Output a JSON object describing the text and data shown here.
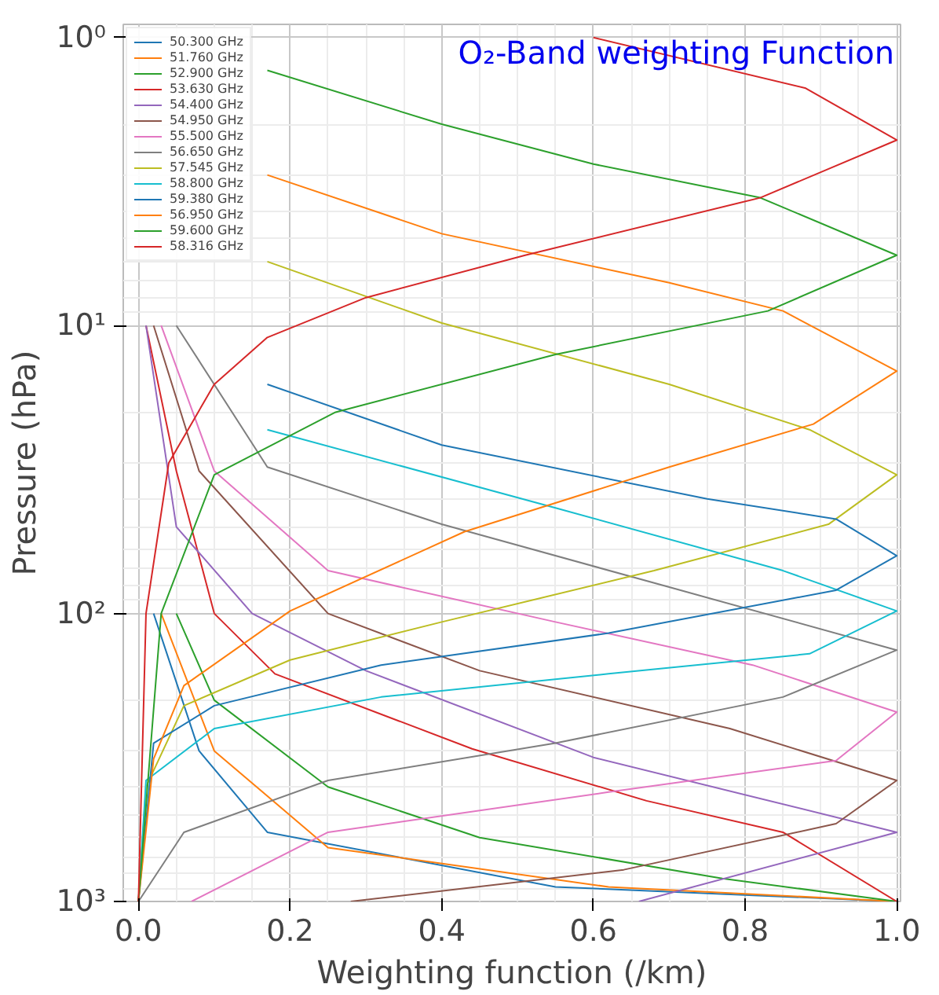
{
  "chart_data": {
    "type": "line",
    "xlabel": "Weighting function (/km)",
    "ylabel": "Pressure (hPa)",
    "annotations": [
      "O₂-Band weighting Function"
    ],
    "xlim": [
      -0.02,
      1.005
    ],
    "ylim": [
      1000,
      0.9
    ],
    "log": "y",
    "grid": true,
    "legend": "top left",
    "marker": "none",
    "line_style": "solid",
    "xticks": [
      {
        "value": 0,
        "label": "0.0"
      },
      {
        "value": 0.2,
        "label": "0.2"
      },
      {
        "value": 0.4,
        "label": "0.4"
      },
      {
        "value": 0.6,
        "label": "0.6"
      },
      {
        "value": 0.8,
        "label": "0.8"
      },
      {
        "value": 1,
        "label": "1.0"
      }
    ],
    "yticks": [
      {
        "value": 1,
        "label": "10⁰"
      },
      {
        "value": 10,
        "label": "10¹"
      },
      {
        "value": 100,
        "label": "10²"
      },
      {
        "value": 1000,
        "label": "10³"
      }
    ],
    "series": [
      {
        "name": "50.300 GHz",
        "color": "#1f77b4",
        "x": [
          0.02,
          0.08,
          0.17,
          0.55,
          1.0
        ],
        "values": [
          100,
          300,
          575,
          890,
          1000
        ]
      },
      {
        "name": "51.760 GHz",
        "color": "#ff7f0e",
        "x": [
          0.03,
          0.1,
          0.25,
          0.62,
          1.0
        ],
        "values": [
          100,
          300,
          650,
          890,
          1000
        ]
      },
      {
        "name": "52.900 GHz",
        "color": "#2ca02c",
        "x": [
          0.05,
          0.1,
          0.25,
          0.45,
          0.77,
          1.0
        ],
        "values": [
          100,
          200,
          400,
          600,
          832,
          1000
        ]
      },
      {
        "name": "53.630 GHz",
        "color": "#d62728",
        "x": [
          0.01,
          0.05,
          0.1,
          0.18,
          0.44,
          0.67,
          0.85,
          1.0
        ],
        "values": [
          10,
          32,
          100,
          162,
          295,
          447,
          575,
          1000
        ]
      },
      {
        "name": "54.400 GHz",
        "color": "#9467bd",
        "x": [
          0.01,
          0.05,
          0.15,
          0.3,
          0.6,
          1.0,
          0.66
        ],
        "values": [
          10,
          50,
          100,
          158,
          316,
          575,
          1000
        ]
      },
      {
        "name": "54.950 GHz",
        "color": "#8c564b",
        "x": [
          0.02,
          0.08,
          0.25,
          0.45,
          0.78,
          1.0,
          0.92,
          0.64,
          0.28
        ],
        "values": [
          10,
          32,
          100,
          158,
          251,
          380,
          537,
          776,
          1000
        ]
      },
      {
        "name": "55.500 GHz",
        "color": "#e377c2",
        "x": [
          0.03,
          0.1,
          0.25,
          0.55,
          0.81,
          1.0,
          0.92,
          0.62,
          0.25,
          0.07
        ],
        "values": [
          10,
          32,
          71,
          107,
          151,
          220,
          324,
          417,
          575,
          1000
        ]
      },
      {
        "name": "56.650 GHz",
        "color": "#7f7f7f",
        "x": [
          0.05,
          0.17,
          0.4,
          0.7,
          1.0,
          0.85,
          0.55,
          0.25,
          0.06,
          0
        ],
        "values": [
          10,
          31,
          49,
          81,
          134,
          195,
          282,
          380,
          575,
          1000
        ]
      },
      {
        "name": "57.545 GHz",
        "color": "#bcbd22",
        "x": [
          0.17,
          0.4,
          0.7,
          0.885,
          1.0,
          0.91,
          0.68,
          0.4,
          0.2,
          0.06,
          0.01,
          0
        ],
        "values": [
          6,
          9.8,
          16,
          23,
          33,
          49,
          71,
          107,
          145,
          209,
          400,
          1000
        ]
      },
      {
        "name": "58.800 GHz",
        "color": "#17becf",
        "x": [
          0.17,
          0.55,
          0.85,
          1.0,
          0.885,
          0.62,
          0.32,
          0.1,
          0.01,
          0
        ],
        "values": [
          23,
          43,
          71,
          98,
          138,
          162,
          195,
          251,
          380,
          1000
        ]
      },
      {
        "name": "59.380 GHz",
        "color": "#1f77b4",
        "x": [
          0.17,
          0.4,
          0.75,
          0.92,
          1.0,
          0.92,
          0.62,
          0.32,
          0.1,
          0.02,
          0
        ],
        "values": [
          16,
          26,
          40,
          47,
          63,
          83,
          117,
          151,
          209,
          282,
          1000
        ]
      },
      {
        "name": "56.950 GHz",
        "color": "#ff7f0e",
        "x": [
          0.17,
          0.4,
          0.7,
          0.85,
          1.0,
          0.89,
          0.7,
          0.43,
          0.2,
          0.06,
          0.02,
          0
        ],
        "values": [
          3,
          4.8,
          7.1,
          8.9,
          14.4,
          22,
          31,
          52,
          98,
          178,
          320,
          1000
        ]
      },
      {
        "name": "59.600 GHz",
        "color": "#2ca02c",
        "x": [
          0.17,
          0.4,
          0.6,
          0.82,
          1.0,
          0.83,
          0.55,
          0.26,
          0.1,
          0.03,
          0
        ],
        "values": [
          1.3,
          2,
          2.75,
          3.6,
          5.7,
          8.9,
          12.6,
          20,
          33,
          100,
          1000
        ]
      },
      {
        "name": "58.316 GHz",
        "color": "#d62728",
        "x": [
          0.6,
          0.88,
          1.0,
          0.82,
          0.51,
          0.3,
          0.17,
          0.1,
          0.04,
          0.01,
          0
        ],
        "values": [
          1,
          1.5,
          2.27,
          3.6,
          5.7,
          8,
          11,
          16,
          30,
          100,
          1000
        ]
      }
    ]
  }
}
